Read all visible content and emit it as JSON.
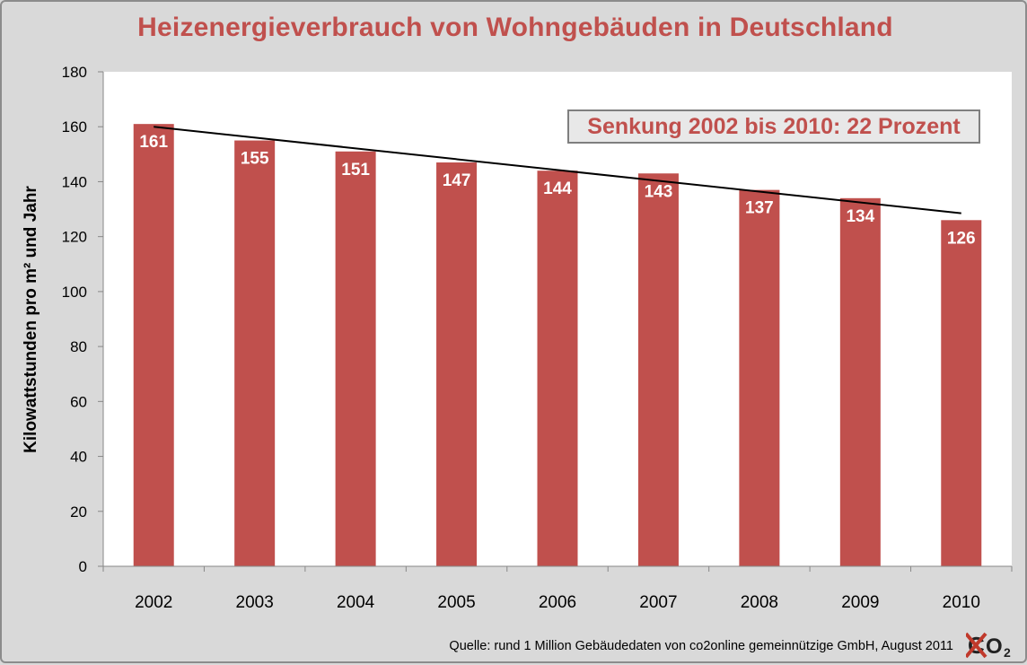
{
  "chart_data": {
    "type": "bar",
    "title": "Heizenergieverbrauch von Wohngebäuden in Deutschland",
    "ylabel": "Kilowattstunden pro m² und Jahr",
    "xlabel": "",
    "categories": [
      "2002",
      "2003",
      "2004",
      "2005",
      "2006",
      "2007",
      "2008",
      "2009",
      "2010"
    ],
    "values": [
      161,
      155,
      151,
      147,
      144,
      143,
      137,
      134,
      126
    ],
    "data_labels": [
      "161",
      "155",
      "151",
      "147",
      "144",
      "143",
      "137",
      "134",
      "126"
    ],
    "ylim": [
      0,
      180
    ],
    "yticks": [
      0,
      20,
      40,
      60,
      80,
      100,
      120,
      140,
      160,
      180
    ],
    "ytick_labels": [
      "0",
      "20",
      "40",
      "60",
      "80",
      "100",
      "120",
      "140",
      "160",
      "180"
    ],
    "trendline": {
      "type": "linear",
      "from_value": 160,
      "to_value": 128.5
    },
    "annotation": "Senkung 2002 bis 2010: 22 Prozent",
    "bar_color": "#c0504d",
    "grid": false,
    "legend": "none"
  },
  "source_text": "Quelle: rund 1 Million Gebäudedaten von co2online gemeinnützige GmbH, August 2011",
  "logo": {
    "text": "O",
    "subscript": "2",
    "icon": "crossed-c-co2-logo",
    "cross_color": "#c0392b"
  }
}
